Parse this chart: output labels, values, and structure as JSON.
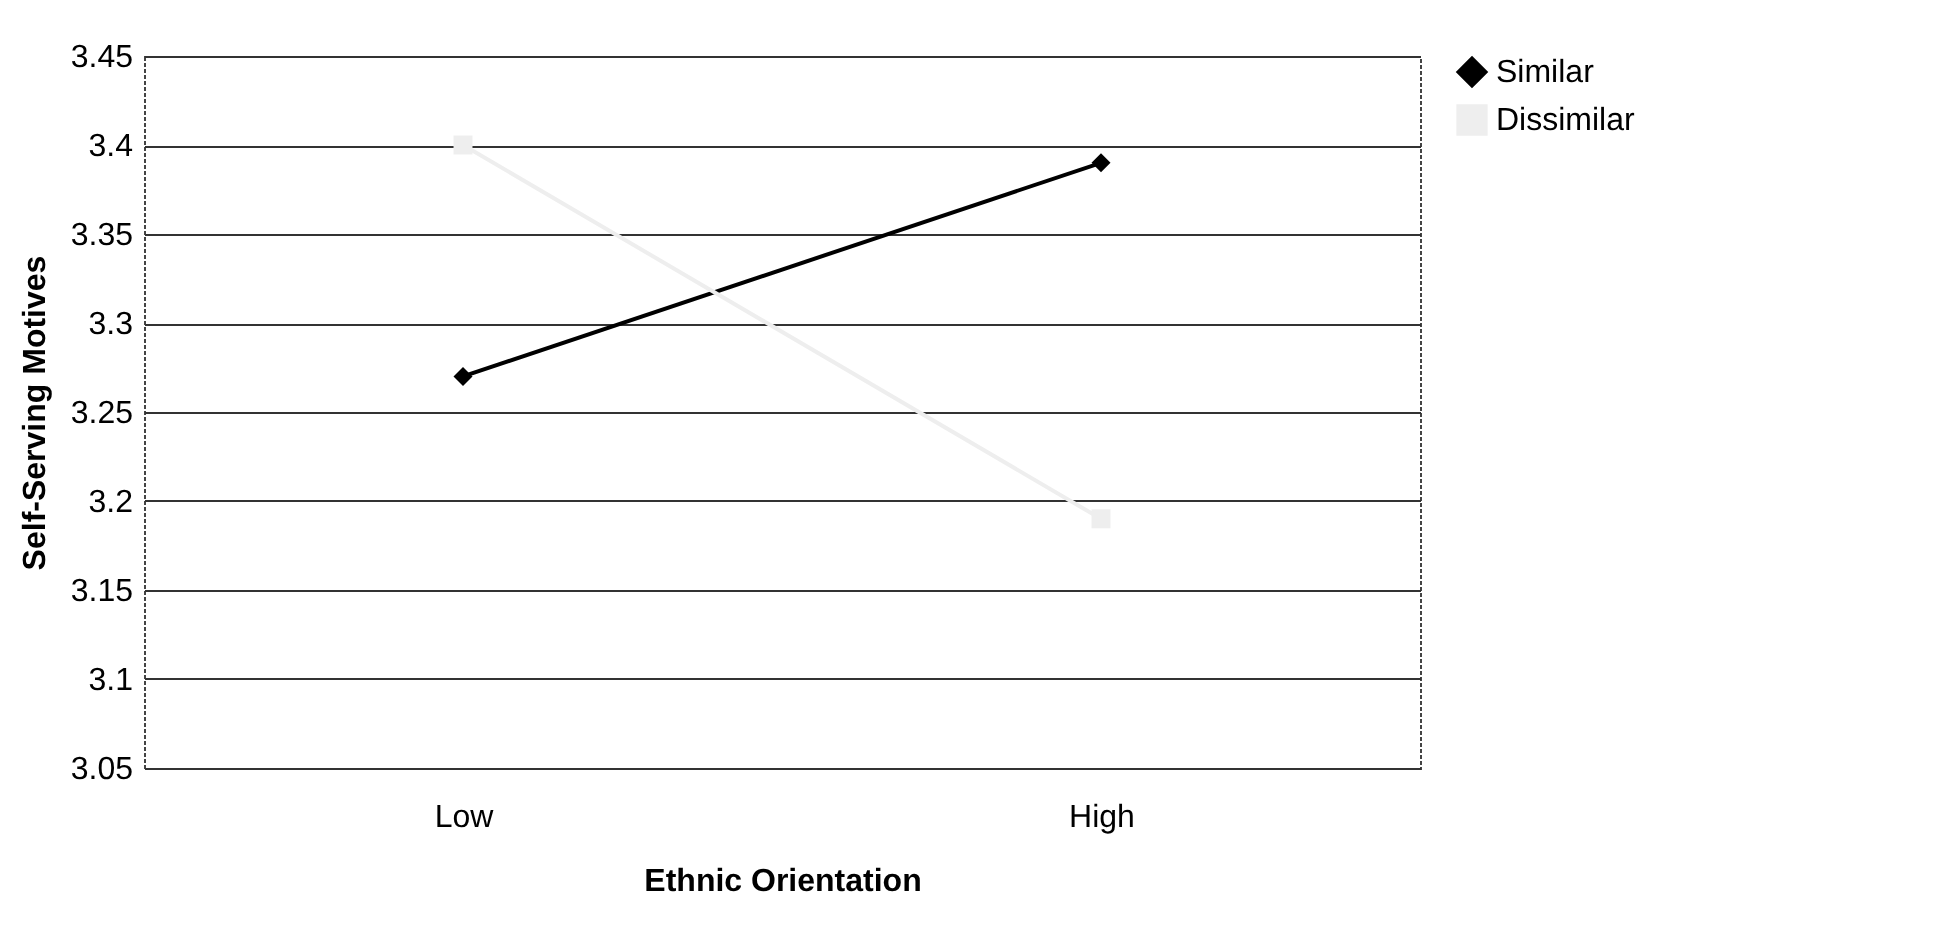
{
  "chart_data": {
    "type": "line",
    "xlabel": "Ethnic Orientation",
    "ylabel": "Self-Serving Motives",
    "categories": [
      "Low",
      "High"
    ],
    "series": [
      {
        "name": "Similar",
        "color": "#000000",
        "values": [
          3.27,
          3.39
        ]
      },
      {
        "name": "Dissimilar",
        "color": "#eeeeee",
        "values": [
          3.4,
          3.19
        ],
        "marker": "square"
      }
    ],
    "ylim": [
      3.05,
      3.45
    ],
    "yticks": [
      3.05,
      3.1,
      3.15,
      3.2,
      3.25,
      3.3,
      3.35,
      3.4,
      3.45
    ],
    "grid": "y",
    "legend": "right",
    "marker": "diamond"
  }
}
